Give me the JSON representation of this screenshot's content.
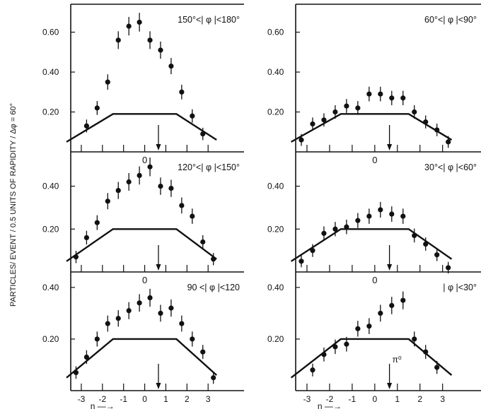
{
  "figure": {
    "ylabel": "PARTICLES/ EVENT / 0.5 UNITS  OF RAPIDITY / Δφ = 60°",
    "xlabel": "η —→"
  },
  "chart_data": [
    {
      "type": "scatter",
      "title": "150°<| φ |<180°",
      "ytick_labels": [
        "0.20",
        "0.40",
        "0.60"
      ],
      "yticks": [
        0.2,
        0.4,
        0.6
      ],
      "xlim": [
        -3.5,
        4.7
      ],
      "ylim": [
        0.0,
        0.74
      ],
      "arrow_x": 0.65,
      "arrow_label": "",
      "zero_label": "",
      "x": [
        -2.75,
        -2.25,
        -1.75,
        -1.25,
        -0.75,
        -0.25,
        0.25,
        0.75,
        1.25,
        1.75,
        2.25,
        2.75
      ],
      "y": [
        0.13,
        0.22,
        0.35,
        0.56,
        0.63,
        0.65,
        0.56,
        0.51,
        0.43,
        0.3,
        0.18,
        0.09
      ],
      "curve": [
        [
          -3.7,
          0.05
        ],
        [
          -1.5,
          0.19
        ],
        [
          1.5,
          0.19
        ],
        [
          3.4,
          0.06
        ]
      ]
    },
    {
      "type": "scatter",
      "title": "60°<| φ |<90°",
      "ytick_labels": [
        "0.20",
        "0.40",
        "0.60"
      ],
      "yticks": [
        0.2,
        0.4,
        0.6
      ],
      "xlim": [
        -3.5,
        4.7
      ],
      "ylim": [
        0.0,
        0.74
      ],
      "arrow_x": 0.65,
      "arrow_label": "",
      "zero_label": "",
      "x": [
        -3.25,
        -2.75,
        -2.25,
        -1.75,
        -1.25,
        -0.75,
        -0.25,
        0.25,
        0.75,
        1.25,
        1.75,
        2.25,
        2.75,
        3.25
      ],
      "y": [
        0.06,
        0.14,
        0.16,
        0.2,
        0.23,
        0.22,
        0.29,
        0.29,
        0.27,
        0.27,
        0.2,
        0.15,
        0.11,
        0.05
      ],
      "curve": [
        [
          -3.7,
          0.05
        ],
        [
          -1.5,
          0.19
        ],
        [
          1.5,
          0.19
        ],
        [
          3.4,
          0.06
        ]
      ]
    },
    {
      "type": "scatter",
      "title": "120°<| φ |<150°",
      "ytick_labels": [
        "0.20",
        "0.40"
      ],
      "yticks": [
        0.2,
        0.4
      ],
      "xlim": [
        -3.5,
        4.7
      ],
      "ylim": [
        0.0,
        0.56
      ],
      "arrow_x": 0.65,
      "arrow_label": "",
      "zero_label": "0",
      "x": [
        -3.25,
        -2.75,
        -2.25,
        -1.75,
        -1.25,
        -0.75,
        -0.25,
        0.25,
        0.75,
        1.25,
        1.75,
        2.25,
        2.75,
        3.25
      ],
      "y": [
        0.07,
        0.16,
        0.23,
        0.33,
        0.38,
        0.42,
        0.45,
        0.49,
        0.4,
        0.39,
        0.31,
        0.26,
        0.14,
        0.06
      ],
      "curve": [
        [
          -3.7,
          0.05
        ],
        [
          -1.5,
          0.2
        ],
        [
          1.5,
          0.2
        ],
        [
          3.4,
          0.06
        ]
      ]
    },
    {
      "type": "scatter",
      "title": "30°<| φ |<60°",
      "ytick_labels": [
        "0.20",
        "0.40"
      ],
      "yticks": [
        0.2,
        0.4
      ],
      "xlim": [
        -3.5,
        4.7
      ],
      "ylim": [
        0.0,
        0.56
      ],
      "arrow_x": 0.65,
      "arrow_label": "",
      "zero_label": "0",
      "x": [
        -3.25,
        -2.75,
        -2.25,
        -1.75,
        -1.25,
        -0.75,
        -0.25,
        0.25,
        0.75,
        1.25,
        1.75,
        2.25,
        2.75,
        3.25
      ],
      "y": [
        0.05,
        0.1,
        0.18,
        0.2,
        0.21,
        0.24,
        0.26,
        0.29,
        0.27,
        0.26,
        0.17,
        0.13,
        0.08,
        0.02
      ],
      "curve": [
        [
          -3.7,
          0.05
        ],
        [
          -1.5,
          0.2
        ],
        [
          1.5,
          0.2
        ],
        [
          3.4,
          0.06
        ]
      ]
    },
    {
      "type": "scatter",
      "title": "90  <| φ |<120",
      "ytick_labels": [
        "0.20",
        "0.40"
      ],
      "yticks": [
        0.2,
        0.4
      ],
      "xlim": [
        -3.5,
        4.7
      ],
      "ylim": [
        0.0,
        0.46
      ],
      "arrow_x": 0.65,
      "arrow_label": "",
      "zero_label": "0",
      "x": [
        -3.25,
        -2.75,
        -2.25,
        -1.75,
        -1.25,
        -0.75,
        -0.25,
        0.25,
        0.75,
        1.25,
        1.75,
        2.25,
        2.75,
        3.25
      ],
      "y": [
        0.07,
        0.13,
        0.2,
        0.26,
        0.28,
        0.31,
        0.34,
        0.36,
        0.3,
        0.32,
        0.26,
        0.2,
        0.15,
        0.05
      ],
      "curve": [
        [
          -3.7,
          0.05
        ],
        [
          -1.5,
          0.2
        ],
        [
          1.5,
          0.2
        ],
        [
          3.4,
          0.06
        ]
      ]
    },
    {
      "type": "scatter",
      "title": "| φ |<30°",
      "ytick_labels": [
        "0.20",
        "0.40"
      ],
      "yticks": [
        0.2,
        0.4
      ],
      "xlim": [
        -3.5,
        4.7
      ],
      "ylim": [
        0.0,
        0.46
      ],
      "arrow_x": 0.65,
      "arrow_label": "π⁰",
      "zero_label": "0",
      "x": [
        -2.75,
        -2.25,
        -1.75,
        -1.25,
        -0.75,
        -0.25,
        0.25,
        0.75,
        1.25,
        1.75,
        2.25,
        2.75
      ],
      "y": [
        0.08,
        0.14,
        0.17,
        0.18,
        0.24,
        0.25,
        0.3,
        0.33,
        0.35,
        0.2,
        0.15,
        0.09
      ],
      "curve": [
        [
          -3.7,
          0.05
        ],
        [
          -1.5,
          0.2
        ],
        [
          1.5,
          0.2
        ],
        [
          3.4,
          0.06
        ]
      ]
    }
  ],
  "x_axis": {
    "ticks": [
      -3,
      -2,
      -1,
      0,
      1,
      2,
      3
    ],
    "tick_labels": [
      "-3",
      "-2",
      "-1",
      "0",
      "1",
      "2",
      "3"
    ]
  }
}
